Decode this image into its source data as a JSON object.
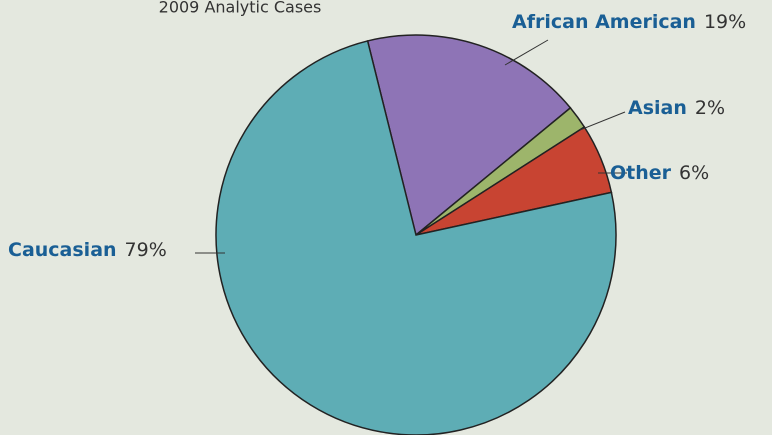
{
  "chart_data": {
    "type": "pie",
    "title": "2009 Analytic Cases",
    "categories": [
      "African American",
      "Asian",
      "Other",
      "Caucasian"
    ],
    "values": [
      19,
      2,
      6,
      79
    ],
    "value_labels": [
      "19%",
      "2%",
      "6%",
      "79%"
    ],
    "colors": [
      "#8e74b6",
      "#9db56b",
      "#c84432",
      "#5eadb5"
    ]
  }
}
